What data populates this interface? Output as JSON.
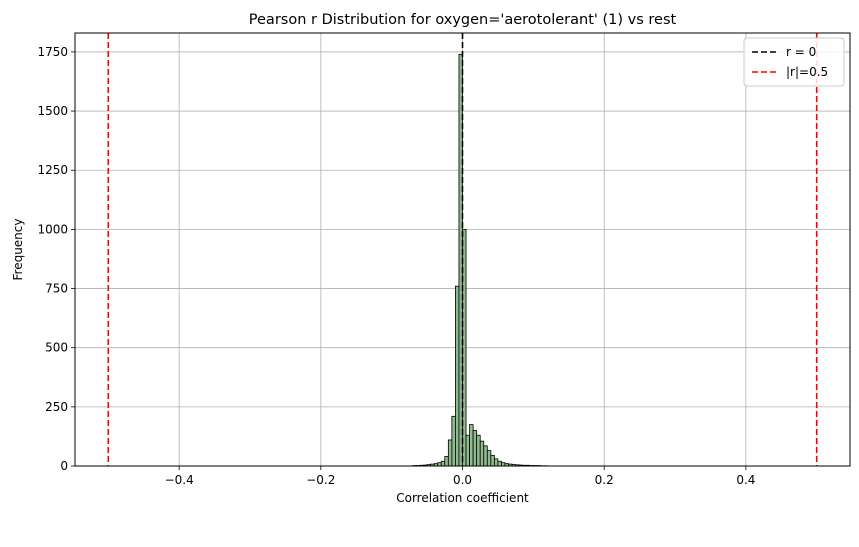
{
  "chart_data": {
    "type": "bar",
    "title": "Pearson r Distribution for oxygen='aerotolerant' (1) vs rest",
    "xlabel": "Correlation coefficient",
    "ylabel": "Frequency",
    "xlim": [
      -0.547,
      0.547
    ],
    "ylim": [
      0,
      1830
    ],
    "xticks": [
      -0.4,
      -0.2,
      0.0,
      0.2,
      0.4
    ],
    "xtick_labels": [
      "−0.4",
      "−0.2",
      "0.0",
      "0.2",
      "0.4"
    ],
    "yticks": [
      0,
      250,
      500,
      750,
      1000,
      1250,
      1500,
      1750
    ],
    "ytick_labels": [
      "0",
      "250",
      "500",
      "750",
      "1000",
      "1250",
      "1500",
      "1750"
    ],
    "grid": true,
    "bin_width": 0.005,
    "histogram": {
      "series_color": "#8fbc8f",
      "bins": [
        {
          "x0": -0.07,
          "count": 2
        },
        {
          "x0": -0.065,
          "count": 2
        },
        {
          "x0": -0.06,
          "count": 3
        },
        {
          "x0": -0.055,
          "count": 4
        },
        {
          "x0": -0.05,
          "count": 6
        },
        {
          "x0": -0.045,
          "count": 8
        },
        {
          "x0": -0.04,
          "count": 10
        },
        {
          "x0": -0.035,
          "count": 14
        },
        {
          "x0": -0.03,
          "count": 20
        },
        {
          "x0": -0.025,
          "count": 40
        },
        {
          "x0": -0.02,
          "count": 110
        },
        {
          "x0": -0.015,
          "count": 210
        },
        {
          "x0": -0.01,
          "count": 760
        },
        {
          "x0": -0.005,
          "count": 1740
        },
        {
          "x0": 0.0,
          "count": 1000
        },
        {
          "x0": 0.005,
          "count": 130
        },
        {
          "x0": 0.01,
          "count": 175
        },
        {
          "x0": 0.015,
          "count": 150
        },
        {
          "x0": 0.02,
          "count": 130
        },
        {
          "x0": 0.025,
          "count": 105
        },
        {
          "x0": 0.03,
          "count": 85
        },
        {
          "x0": 0.035,
          "count": 65
        },
        {
          "x0": 0.04,
          "count": 45
        },
        {
          "x0": 0.045,
          "count": 30
        },
        {
          "x0": 0.05,
          "count": 20
        },
        {
          "x0": 0.055,
          "count": 14
        },
        {
          "x0": 0.06,
          "count": 10
        },
        {
          "x0": 0.065,
          "count": 8
        },
        {
          "x0": 0.07,
          "count": 6
        },
        {
          "x0": 0.075,
          "count": 5
        },
        {
          "x0": 0.08,
          "count": 4
        },
        {
          "x0": 0.085,
          "count": 3
        },
        {
          "x0": 0.09,
          "count": 3
        },
        {
          "x0": 0.095,
          "count": 2
        },
        {
          "x0": 0.1,
          "count": 2
        },
        {
          "x0": 0.105,
          "count": 2
        },
        {
          "x0": 0.11,
          "count": 1
        },
        {
          "x0": 0.115,
          "count": 1
        }
      ]
    },
    "reference_lines": [
      {
        "name": "r = 0",
        "x": 0.0,
        "color": "#000000",
        "style": "dashed"
      },
      {
        "name": "|r|=0.5",
        "x": -0.5,
        "color": "#ff0000",
        "style": "dashed"
      },
      {
        "name": "|r|=0.5",
        "x": 0.5,
        "color": "#ff0000",
        "style": "dashed"
      }
    ],
    "legend": {
      "placement": "top-right",
      "entries": [
        {
          "label": "r = 0",
          "color": "#000000"
        },
        {
          "label": "|r|=0.5",
          "color": "#ff0000"
        }
      ]
    }
  }
}
